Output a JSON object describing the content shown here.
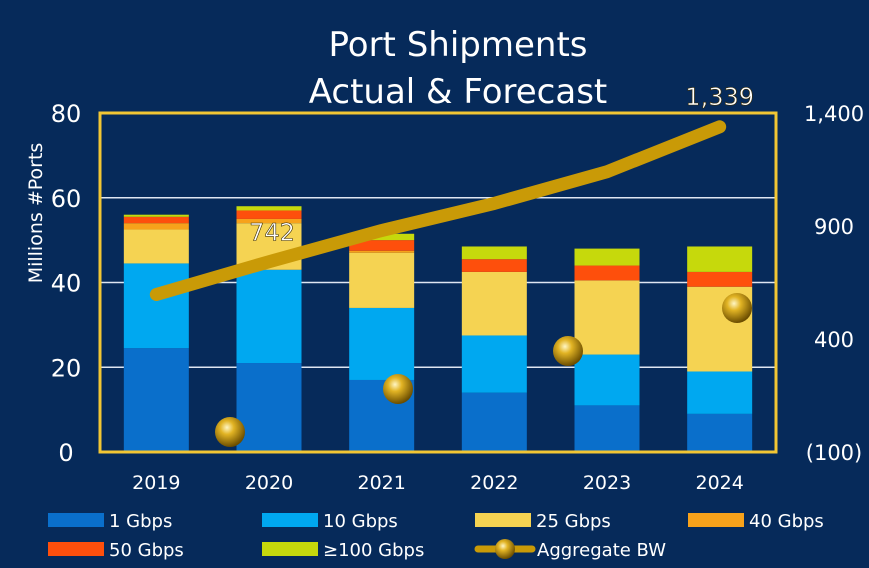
{
  "chart_data": {
    "type": "bar",
    "title_line1": "Port Shipments",
    "title_line2": "Actual & Forecast",
    "ylabel": "Millions #Ports",
    "ylim": [
      0,
      80
    ],
    "y_ticks": [
      "0",
      "20",
      "40",
      "60",
      "80"
    ],
    "y2lim": [
      -100,
      1400
    ],
    "y2_ticks": [
      "(100)",
      "400",
      "900",
      "1,400"
    ],
    "categories": [
      "2019",
      "2020",
      "2021",
      "2022",
      "2023",
      "2024"
    ],
    "series": [
      {
        "name": "1 Gbps",
        "color": "#0a6fcb",
        "values": [
          24.5,
          21,
          17,
          14,
          11,
          9
        ]
      },
      {
        "name": "10 Gbps",
        "color": "#00a8f0",
        "values": [
          20,
          22,
          17,
          13.5,
          12,
          10
        ]
      },
      {
        "name": "25 Gbps",
        "color": "#f5d352",
        "values": [
          8,
          11,
          13,
          15,
          17.5,
          20
        ]
      },
      {
        "name": "40 Gbps",
        "color": "#f7a21b",
        "values": [
          1.5,
          1,
          0.5,
          0,
          0,
          0
        ]
      },
      {
        "name": "50 Gbps",
        "color": "#fe4f0c",
        "values": [
          1.5,
          2,
          2.5,
          3,
          3.5,
          3.5
        ]
      },
      {
        "name": "≥100 Gbps",
        "color": "#c6d90c",
        "values": [
          0.5,
          1,
          1.5,
          3,
          4,
          6
        ]
      }
    ],
    "line": {
      "name": "Aggregate BW",
      "color": "#c99a07",
      "values": [
        597,
        742,
        880,
        1000,
        1140,
        1339
      ]
    },
    "data_labels": [
      {
        "index": 1,
        "text": "742"
      },
      {
        "index": 5,
        "text": "1,339"
      }
    ],
    "grid": true,
    "legend_position": "bottom"
  }
}
